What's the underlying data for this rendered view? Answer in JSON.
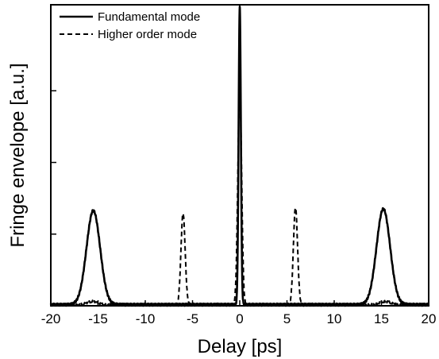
{
  "chart_data": {
    "type": "line",
    "xlabel": "Delay [ps]",
    "ylabel": "Fringe envelope [a.u.]",
    "xlim": [
      -20,
      20
    ],
    "ylim": [
      0,
      1.05
    ],
    "xticks": [
      "-20",
      "-15",
      "-10",
      "-5",
      "0",
      "5",
      "10",
      "15",
      "20"
    ],
    "yticks_labeled": false,
    "grid": false,
    "legend_position": "top-left",
    "series": [
      {
        "name": "Fundamental mode",
        "style": "solid",
        "color": "#000000",
        "baseline": 0.004,
        "peaks": [
          {
            "center": -15.5,
            "width": 0.72,
            "amplitude": 0.328
          },
          {
            "center": 0.0,
            "width": 0.12,
            "amplitude": 1.04
          },
          {
            "center": 15.2,
            "width": 0.72,
            "amplitude": 0.334
          }
        ]
      },
      {
        "name": "Higher order mode",
        "style": "dashed",
        "color": "#000000",
        "baseline": 0.003,
        "peaks": [
          {
            "center": -15.6,
            "width": 0.6,
            "amplitude": 0.012
          },
          {
            "center": -6.0,
            "width": 0.22,
            "amplitude": 0.32
          },
          {
            "center": 0.0,
            "width": 0.2,
            "amplitude": 0.75
          },
          {
            "center": 5.9,
            "width": 0.22,
            "amplitude": 0.34
          },
          {
            "center": 15.4,
            "width": 0.6,
            "amplitude": 0.012
          }
        ]
      }
    ]
  }
}
